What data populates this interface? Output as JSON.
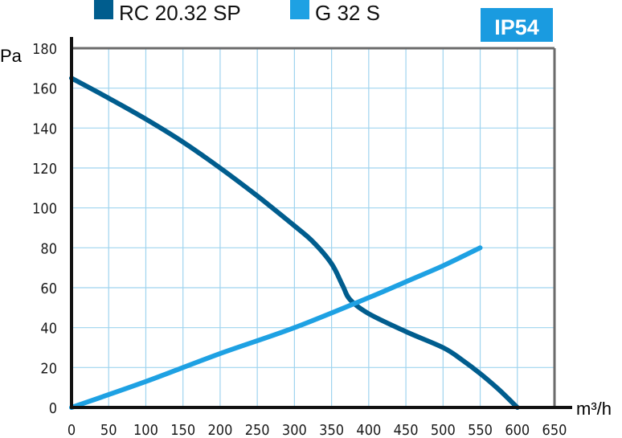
{
  "chart_data": {
    "type": "line",
    "xlabel": "m³/h",
    "ylabel": "Pa",
    "xlim": [
      0,
      650
    ],
    "ylim": [
      0,
      180
    ],
    "x_ticks": [
      "0",
      "50",
      "100",
      "150",
      "200",
      "250",
      "300",
      "350",
      "400",
      "450",
      "500",
      "550",
      "600",
      "650"
    ],
    "y_ticks": [
      "0",
      "20",
      "40",
      "60",
      "80",
      "100",
      "120",
      "140",
      "160",
      "180"
    ],
    "grid": true,
    "legend_position": "top-left",
    "badge": {
      "label": "IP54",
      "color": "#1a9be0"
    },
    "series": [
      {
        "name": "RC 20.32 SP",
        "color": "#005d8e",
        "points": [
          [
            0,
            165
          ],
          [
            50,
            155
          ],
          [
            100,
            144.5
          ],
          [
            150,
            133
          ],
          [
            200,
            120
          ],
          [
            250,
            106
          ],
          [
            300,
            91
          ],
          [
            325,
            83
          ],
          [
            350,
            72
          ],
          [
            365,
            61
          ],
          [
            375,
            54
          ],
          [
            400,
            47
          ],
          [
            450,
            38
          ],
          [
            500,
            30
          ],
          [
            525,
            24
          ],
          [
            550,
            17
          ],
          [
            575,
            9
          ],
          [
            600,
            0
          ]
        ]
      },
      {
        "name": "G 32 S",
        "color": "#1ea1e3",
        "points": [
          [
            0,
            0
          ],
          [
            100,
            13
          ],
          [
            200,
            27
          ],
          [
            300,
            40
          ],
          [
            400,
            55
          ],
          [
            450,
            63
          ],
          [
            500,
            71
          ],
          [
            550,
            80
          ]
        ]
      }
    ]
  }
}
